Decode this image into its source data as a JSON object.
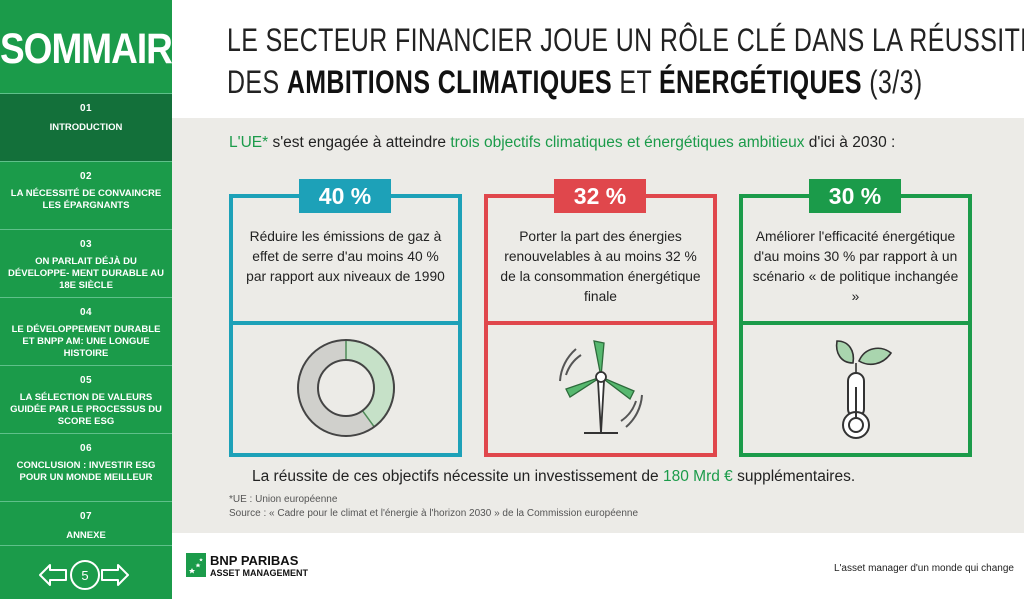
{
  "sidebar": {
    "title": "SOMMAIRE",
    "items": [
      {
        "num": "01",
        "label": "INTRODUCTION"
      },
      {
        "num": "02",
        "label": "LA NÉCESSITÉ DE CONVAINCRE LES ÉPARGNANTS"
      },
      {
        "num": "03",
        "label": "ON PARLAIT DÉJÀ DU DÉVELOPPE- MENT DURABLE AU 18E SIÈCLE"
      },
      {
        "num": "04",
        "label": "LE DÉVELOPPEMENT DURABLE ET BNPP AM: UNE LONGUE HISTOIRE"
      },
      {
        "num": "05",
        "label": "LA SÉLECTION DE VALEURS GUIDÉE PAR LE PROCESSUS DU SCORE ESG"
      },
      {
        "num": "06",
        "label": "CONCLUSION : INVESTIR ESG POUR UN MONDE MEILLEUR"
      },
      {
        "num": "07",
        "label": "ANNEXE"
      }
    ],
    "page_number": "5"
  },
  "header": {
    "line1": "LE SECTEUR FINANCIER JOUE UN RÔLE CLÉ DANS LA RÉUSSITE",
    "line2_prefix": "DES ",
    "line2_bold1": "AMBITIONS CLIMATIQUES",
    "line2_mid": " ET ",
    "line2_bold2": "ÉNERGÉTIQUES",
    "line2_suffix": " (3/3)"
  },
  "intro": {
    "part1": "L'UE*",
    "part2": " s'est engagée à atteindre ",
    "part3": "trois objectifs climatiques et énergétiques ambitieux",
    "part4": " d'ici à 2030 :"
  },
  "cards": [
    {
      "badge": "40 %",
      "text": "Réduire les émissions de gaz à effet de serre d'au moins 40 % par rapport aux niveaux de 1990",
      "icon": "donut-chart-icon",
      "color": "#1da1b8"
    },
    {
      "badge": "32 %",
      "text": "Porter la part des énergies renouvelables à au moins 32 % de la consommation énergétique finale",
      "icon": "wind-turbine-icon",
      "color": "#e0474c"
    },
    {
      "badge": "30 %",
      "text": "Améliorer l'efficacité énergétique d'au moins 30 % par rapport à un scénario « de politique inchangée »",
      "icon": "thermometer-leaf-icon",
      "color": "#1b9b4a"
    }
  ],
  "donut_share": 0.4,
  "conclusion": {
    "part1": "La réussite de ces objectifs nécessite un investissement de ",
    "amount": "180 Mrd €",
    "part2": " supplémentaires."
  },
  "footnotes": {
    "ue": "*UE : Union européenne",
    "source": "Source : « Cadre pour le climat et l'énergie à l'horizon 2030 » de la Commission européenne"
  },
  "footer": {
    "logo_main": "BNP PARIBAS",
    "logo_sub": "ASSET MANAGEMENT",
    "tagline": "L'asset manager d'un monde qui change"
  },
  "colors": {
    "brand_green": "#1b9b4a",
    "blue": "#1da1b8",
    "red": "#e0474c"
  }
}
